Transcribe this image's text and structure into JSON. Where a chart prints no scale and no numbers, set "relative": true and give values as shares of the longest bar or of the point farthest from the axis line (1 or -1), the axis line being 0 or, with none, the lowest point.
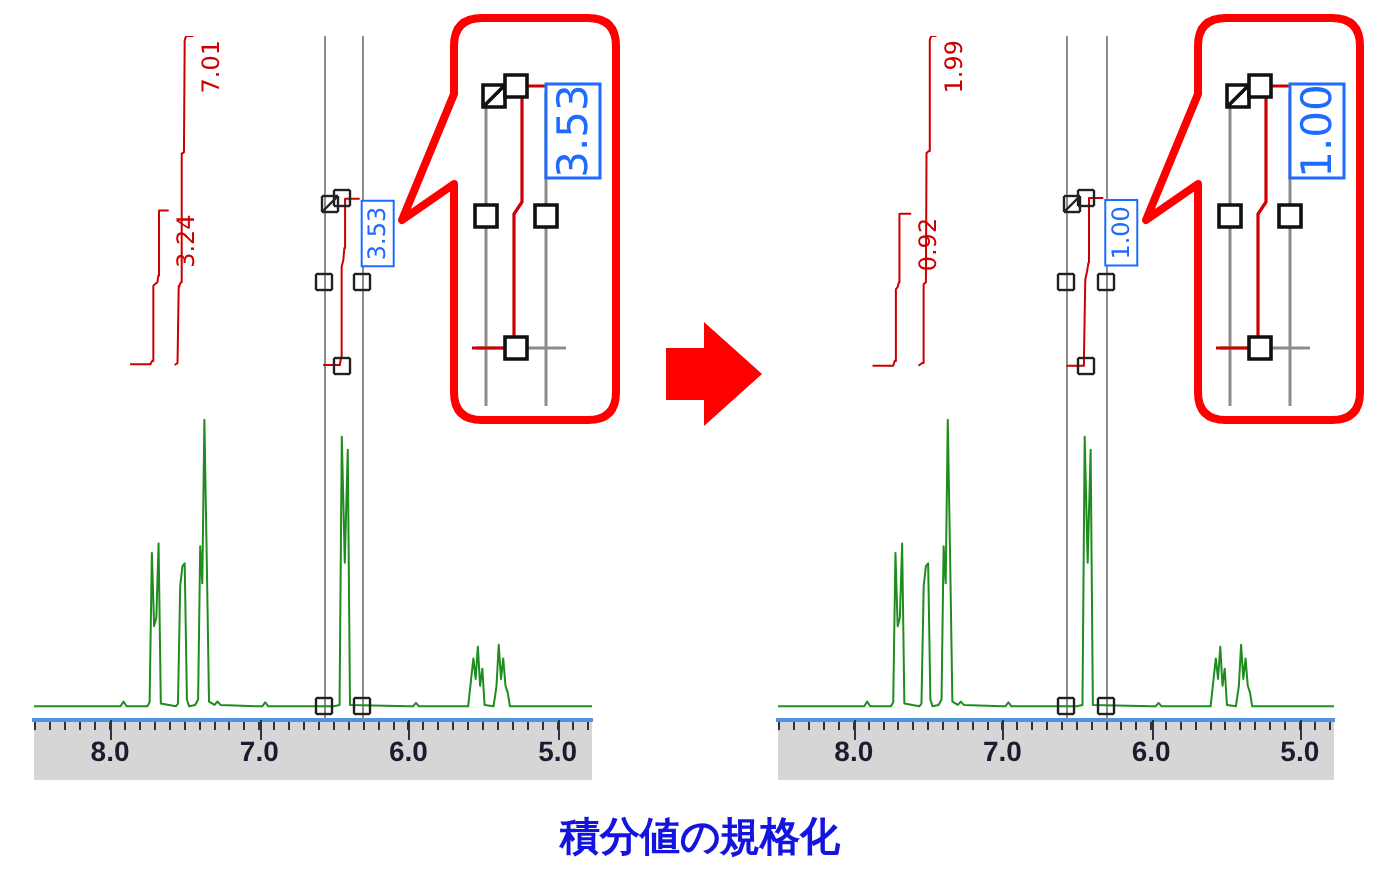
{
  "chart_data": [
    {
      "type": "line",
      "title": "積分値の規格化",
      "relative": true,
      "xlim": [
        8.51,
        4.77
      ],
      "xticks": [
        {
          "value": 8.5,
          "label": null
        },
        {
          "value": 8.4,
          "label": null
        },
        {
          "value": 8.3,
          "label": null
        },
        {
          "value": 8.2,
          "label": null
        },
        {
          "value": 8.1,
          "label": null
        },
        {
          "value": 8,
          "label": "8.0"
        },
        {
          "value": 7.9,
          "label": null
        },
        {
          "value": 7.8,
          "label": null
        },
        {
          "value": 7.7,
          "label": null
        },
        {
          "value": 7.6,
          "label": null
        },
        {
          "value": 7.5,
          "label": null
        },
        {
          "value": 7.4,
          "label": null
        },
        {
          "value": 7.3,
          "label": null
        },
        {
          "value": 7.2,
          "label": null
        },
        {
          "value": 7.1,
          "label": null
        },
        {
          "value": 7,
          "label": "7.0"
        },
        {
          "value": 6.9,
          "label": null
        },
        {
          "value": 6.8,
          "label": null
        },
        {
          "value": 6.7,
          "label": null
        },
        {
          "value": 6.6,
          "label": null
        },
        {
          "value": 6.5,
          "label": null
        },
        {
          "value": 6.4,
          "label": null
        },
        {
          "value": 6.3,
          "label": null
        },
        {
          "value": 6.2,
          "label": null
        },
        {
          "value": 6.1,
          "label": null
        },
        {
          "value": 6,
          "label": "6.0"
        },
        {
          "value": 5.9,
          "label": null
        },
        {
          "value": 5.8,
          "label": null
        },
        {
          "value": 5.7,
          "label": null
        },
        {
          "value": 5.6,
          "label": null
        },
        {
          "value": 5.5,
          "label": null
        },
        {
          "value": 5.4,
          "label": null
        },
        {
          "value": 5.3,
          "label": null
        },
        {
          "value": 5.2,
          "label": null
        },
        {
          "value": 5.1,
          "label": null
        },
        {
          "value": 5,
          "label": "5.0"
        },
        {
          "value": 4.9,
          "label": null
        },
        {
          "value": 4.8,
          "label": null
        }
      ],
      "series": [
        {
          "color": "#1e8c1e",
          "x": [
            8.51,
            8,
            7.93,
            7.91,
            7.89,
            7.75,
            7.735,
            7.72,
            7.705,
            7.69,
            7.675,
            7.66,
            7.56,
            7.545,
            7.53,
            7.515,
            7.5,
            7.485,
            7.47,
            7.43,
            7.41,
            7.396,
            7.382,
            7.368,
            7.352,
            7.337,
            7.3,
            7.28,
            7.26,
            7,
            6.98,
            6.96,
            6.94,
            6.5,
            6.462,
            6.447,
            6.427,
            6.407,
            6.392,
            6,
            5.97,
            5.95,
            5.93,
            5.6,
            5.58,
            5.565,
            5.55,
            5.535,
            5.52,
            5.505,
            5.49,
            5.43,
            5.41,
            5.395,
            5.38,
            5.365,
            5.35,
            5.335,
            5.32,
            4.77
          ],
          "values": [
            0.02,
            0.02,
            0.02,
            0.027,
            0.02,
            0.02,
            0.026,
            0.244,
            0.137,
            0.15,
            0.258,
            0.024,
            0.02,
            0.024,
            0.196,
            0.225,
            0.229,
            0.03,
            0.02,
            0.022,
            0.03,
            0.254,
            0.2,
            0.439,
            0.234,
            0.027,
            0.022,
            0.027,
            0.022,
            0.02,
            0.02,
            0.026,
            0.02,
            0.02,
            0.022,
            0.414,
            0.23,
            0.395,
            0.022,
            0.02,
            0.02,
            0.025,
            0.02,
            0.02,
            0.06,
            0.09,
            0.06,
            0.107,
            0.05,
            0.075,
            0.022,
            0.02,
            0.05,
            0.11,
            0.06,
            0.09,
            0.05,
            0.04,
            0.02,
            0.02
          ]
        },
        {
          "color": "#cc0000",
          "x": [
            7.866,
            7.73,
            7.718,
            7.71,
            7.7,
            7.683,
            7.676,
            7.672,
            7.607
          ],
          "values": [
            0.52,
            0.52,
            0.525,
            0.635,
            0.637,
            0.64,
            0.65,
            0.745,
            0.745
          ]
        },
        {
          "color": "#cc0000",
          "x": [
            7.567,
            7.548,
            7.54,
            7.535,
            7.525,
            7.52,
            7.505,
            7.5,
            7.49,
            7.442
          ],
          "values": [
            0.519,
            0.522,
            0.634,
            0.636,
            0.64,
            0.828,
            0.83,
            0.994,
            1,
            1
          ]
        },
        {
          "color": "#cc0000",
          "x": [
            6.572,
            6.46,
            6.452,
            6.448,
            6.437,
            6.43,
            6.425,
            6.327
          ],
          "values": [
            0.519,
            0.519,
            0.53,
            0.663,
            0.672,
            0.69,
            0.762,
            0.762
          ]
        }
      ],
      "ref_lines": [
        {
          "axis": "x",
          "value": 6.57,
          "color": "#8c8c8c"
        },
        {
          "axis": "x",
          "value": 6.31,
          "color": "#8c8c8c"
        }
      ],
      "annotations": [
        {
          "text": "3.24",
          "x": 7.607,
          "y": 0.745
        },
        {
          "text": "7.01",
          "x": 7.442,
          "y": 1
        },
        {
          "text": "3.53",
          "x": 6.327,
          "y": 0.762
        },
        "3.53"
      ]
    },
    {
      "type": "line",
      "relative": true,
      "xlim": [
        8.51,
        4.77
      ],
      "xticks": [
        {
          "value": 8.5,
          "label": null
        },
        {
          "value": 8.4,
          "label": null
        },
        {
          "value": 8.3,
          "label": null
        },
        {
          "value": 8.2,
          "label": null
        },
        {
          "value": 8.1,
          "label": null
        },
        {
          "value": 8,
          "label": "8.0"
        },
        {
          "value": 7.9,
          "label": null
        },
        {
          "value": 7.8,
          "label": null
        },
        {
          "value": 7.7,
          "label": null
        },
        {
          "value": 7.6,
          "label": null
        },
        {
          "value": 7.5,
          "label": null
        },
        {
          "value": 7.4,
          "label": null
        },
        {
          "value": 7.3,
          "label": null
        },
        {
          "value": 7.2,
          "label": null
        },
        {
          "value": 7.1,
          "label": null
        },
        {
          "value": 7,
          "label": "7.0"
        },
        {
          "value": 6.9,
          "label": null
        },
        {
          "value": 6.8,
          "label": null
        },
        {
          "value": 6.7,
          "label": null
        },
        {
          "value": 6.6,
          "label": null
        },
        {
          "value": 6.5,
          "label": null
        },
        {
          "value": 6.4,
          "label": null
        },
        {
          "value": 6.3,
          "label": null
        },
        {
          "value": 6.2,
          "label": null
        },
        {
          "value": 6.1,
          "label": null
        },
        {
          "value": 6,
          "label": "6.0"
        },
        {
          "value": 5.9,
          "label": null
        },
        {
          "value": 5.8,
          "label": null
        },
        {
          "value": 5.7,
          "label": null
        },
        {
          "value": 5.6,
          "label": null
        },
        {
          "value": 5.5,
          "label": null
        },
        {
          "value": 5.4,
          "label": null
        },
        {
          "value": 5.3,
          "label": null
        },
        {
          "value": 5.2,
          "label": null
        },
        {
          "value": 5.1,
          "label": null
        },
        {
          "value": 5,
          "label": "5.0"
        },
        {
          "value": 4.9,
          "label": null
        },
        {
          "value": 4.8,
          "label": null
        }
      ],
      "series": [
        {
          "color": "#1e8c1e",
          "x": [
            8.51,
            8,
            7.93,
            7.91,
            7.89,
            7.75,
            7.735,
            7.72,
            7.705,
            7.69,
            7.675,
            7.66,
            7.56,
            7.545,
            7.53,
            7.515,
            7.5,
            7.485,
            7.47,
            7.43,
            7.41,
            7.396,
            7.382,
            7.368,
            7.352,
            7.337,
            7.3,
            7.28,
            7.26,
            7,
            6.98,
            6.96,
            6.94,
            6.5,
            6.462,
            6.447,
            6.427,
            6.407,
            6.392,
            6,
            5.97,
            5.95,
            5.93,
            5.6,
            5.58,
            5.565,
            5.55,
            5.535,
            5.52,
            5.505,
            5.49,
            5.43,
            5.41,
            5.395,
            5.38,
            5.365,
            5.35,
            5.335,
            5.32,
            4.77
          ],
          "values": [
            0.02,
            0.02,
            0.02,
            0.027,
            0.02,
            0.02,
            0.026,
            0.244,
            0.137,
            0.15,
            0.258,
            0.024,
            0.02,
            0.024,
            0.196,
            0.225,
            0.229,
            0.03,
            0.02,
            0.022,
            0.03,
            0.254,
            0.2,
            0.439,
            0.234,
            0.027,
            0.022,
            0.027,
            0.022,
            0.02,
            0.02,
            0.026,
            0.02,
            0.02,
            0.022,
            0.414,
            0.23,
            0.395,
            0.022,
            0.02,
            0.02,
            0.025,
            0.02,
            0.02,
            0.06,
            0.09,
            0.06,
            0.107,
            0.05,
            0.075,
            0.022,
            0.02,
            0.05,
            0.11,
            0.06,
            0.09,
            0.05,
            0.04,
            0.02,
            0.02
          ]
        },
        {
          "color": "#cc0000",
          "x": [
            7.874,
            7.735,
            7.725,
            7.717,
            7.705,
            7.697,
            7.693,
            7.614
          ],
          "values": [
            0.518,
            0.518,
            0.525,
            0.63,
            0.633,
            0.64,
            0.74,
            0.74
          ]
        },
        {
          "color": "#cc0000",
          "x": [
            7.565,
            7.54,
            7.533,
            7.528,
            7.515,
            7.511,
            7.495,
            7.489,
            7.48,
            7.444
          ],
          "values": [
            0.518,
            0.522,
            0.635,
            0.637,
            0.64,
            0.829,
            0.832,
            0.994,
            1,
            1
          ]
        },
        {
          "color": "#cc0000",
          "x": [
            6.569,
            6.46,
            6.452,
            6.443,
            6.432,
            6.421,
            6.418,
            6.322
          ],
          "values": [
            0.518,
            0.518,
            0.53,
            0.644,
            0.655,
            0.669,
            0.763,
            0.763
          ]
        }
      ],
      "ref_lines": [
        {
          "axis": "x",
          "value": 6.57,
          "color": "#8c8c8c"
        },
        {
          "axis": "x",
          "value": 6.31,
          "color": "#8c8c8c"
        }
      ],
      "annotations": [
        {
          "text": "0.92",
          "x": 7.614,
          "y": 0.74
        },
        {
          "text": "1.99",
          "x": 7.444,
          "y": 1
        },
        {
          "text": "1.00",
          "x": 6.322,
          "y": 0.763
        },
        "1.00"
      ]
    }
  ]
}
